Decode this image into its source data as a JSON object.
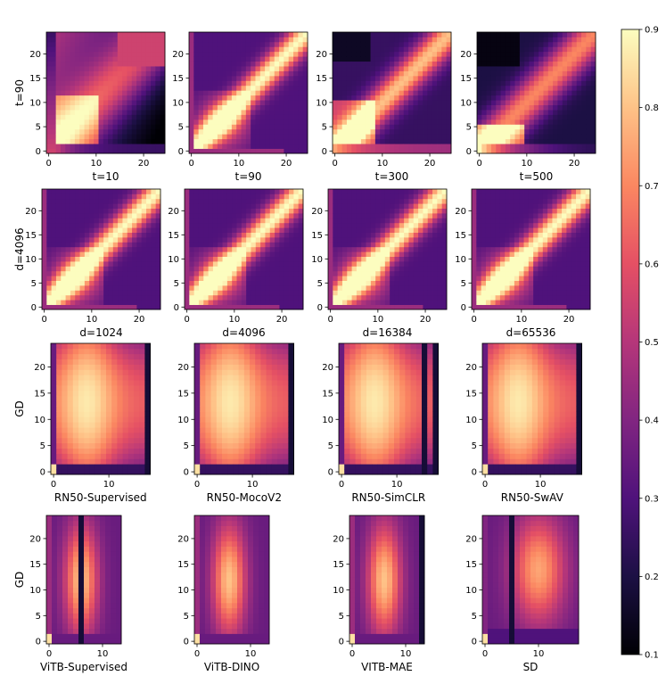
{
  "chart_data": {
    "type": "heatmap",
    "colormap": "magma",
    "colorbar": {
      "min": 0.1,
      "max": 0.9,
      "ticks": [
        0.1,
        0.2,
        0.3,
        0.4,
        0.5,
        0.6,
        0.7,
        0.8,
        0.9
      ],
      "placement": "right"
    },
    "grid": false,
    "rows": [
      {
        "ylabel": "t=90",
        "panels": [
          {
            "xlabel": "t=10",
            "x_cells": 25,
            "y_cells": 25,
            "xticks": [
              0,
              10,
              20
            ],
            "yticks": [
              0,
              5,
              10,
              15,
              20
            ],
            "pattern": "t10"
          },
          {
            "xlabel": "t=90",
            "x_cells": 25,
            "y_cells": 25,
            "xticks": [
              0,
              10,
              20
            ],
            "yticks": [
              0,
              5,
              10,
              15,
              20
            ],
            "pattern": "t90"
          },
          {
            "xlabel": "t=300",
            "x_cells": 25,
            "y_cells": 25,
            "xticks": [
              0,
              10,
              20
            ],
            "yticks": [
              0,
              5,
              10,
              15,
              20
            ],
            "pattern": "t300"
          },
          {
            "xlabel": "t=500",
            "x_cells": 25,
            "y_cells": 25,
            "xticks": [
              0,
              10,
              20
            ],
            "yticks": [
              0,
              5,
              10,
              15,
              20
            ],
            "pattern": "t500"
          }
        ]
      },
      {
        "ylabel": "d=4096",
        "panels": [
          {
            "xlabel": "d=1024",
            "x_cells": 25,
            "y_cells": 25,
            "xticks": [
              0,
              10,
              20
            ],
            "yticks": [
              0,
              5,
              10,
              15,
              20
            ],
            "pattern": "dim"
          },
          {
            "xlabel": "d=4096",
            "x_cells": 25,
            "y_cells": 25,
            "xticks": [
              0,
              10,
              20
            ],
            "yticks": [
              0,
              5,
              10,
              15,
              20
            ],
            "pattern": "dim"
          },
          {
            "xlabel": "d=16384",
            "x_cells": 25,
            "y_cells": 25,
            "xticks": [
              0,
              10,
              20
            ],
            "yticks": [
              0,
              5,
              10,
              15,
              20
            ],
            "pattern": "dim"
          },
          {
            "xlabel": "d=65536",
            "x_cells": 25,
            "y_cells": 25,
            "xticks": [
              0,
              10,
              20
            ],
            "yticks": [
              0,
              5,
              10,
              15,
              20
            ],
            "pattern": "dim"
          }
        ]
      },
      {
        "ylabel": "GD",
        "panels": [
          {
            "xlabel": "RN50-Supervised",
            "x_cells": 18,
            "y_cells": 25,
            "xticks": [
              0,
              10
            ],
            "yticks": [
              0,
              5,
              10,
              15,
              20
            ],
            "pattern": "rn",
            "dark_cols": [
              17
            ]
          },
          {
            "xlabel": "RN50-MocoV2",
            "x_cells": 18,
            "y_cells": 25,
            "xticks": [
              0,
              10
            ],
            "yticks": [
              0,
              5,
              10,
              15,
              20
            ],
            "pattern": "rn",
            "dark_cols": [
              17
            ]
          },
          {
            "xlabel": "RN50-SimCLR",
            "x_cells": 18,
            "y_cells": 25,
            "xticks": [
              0,
              10
            ],
            "yticks": [
              0,
              5,
              10,
              15,
              20
            ],
            "pattern": "rn",
            "dark_cols": [
              15,
              17
            ]
          },
          {
            "xlabel": "RN50-SwAV",
            "x_cells": 18,
            "y_cells": 25,
            "xticks": [
              0,
              10
            ],
            "yticks": [
              0,
              5,
              10,
              15,
              20
            ],
            "pattern": "rn",
            "dark_cols": [
              17
            ]
          }
        ]
      },
      {
        "ylabel": "GD",
        "panels": [
          {
            "xlabel": "ViTB-Supervised",
            "x_cells": 14,
            "y_cells": 25,
            "xticks": [
              0,
              10
            ],
            "yticks": [
              0,
              5,
              10,
              15,
              20
            ],
            "pattern": "vit_sup",
            "dark_cols": [
              6
            ]
          },
          {
            "xlabel": "ViTB-DINO",
            "x_cells": 14,
            "y_cells": 25,
            "xticks": [
              0,
              10
            ],
            "yticks": [
              0,
              5,
              10,
              15,
              20
            ],
            "pattern": "vit",
            "dark_cols": []
          },
          {
            "xlabel": "VITB-MAE",
            "x_cells": 14,
            "y_cells": 25,
            "xticks": [
              0,
              10
            ],
            "yticks": [
              0,
              5,
              10,
              15,
              20
            ],
            "pattern": "vit",
            "dark_cols": [
              13
            ]
          },
          {
            "xlabel": "SD",
            "x_cells": 18,
            "y_cells": 25,
            "xticks": [
              0,
              10
            ],
            "yticks": [
              0,
              5,
              10,
              15,
              20
            ],
            "pattern": "sd",
            "dark_cols": [
              5
            ]
          }
        ]
      }
    ]
  }
}
